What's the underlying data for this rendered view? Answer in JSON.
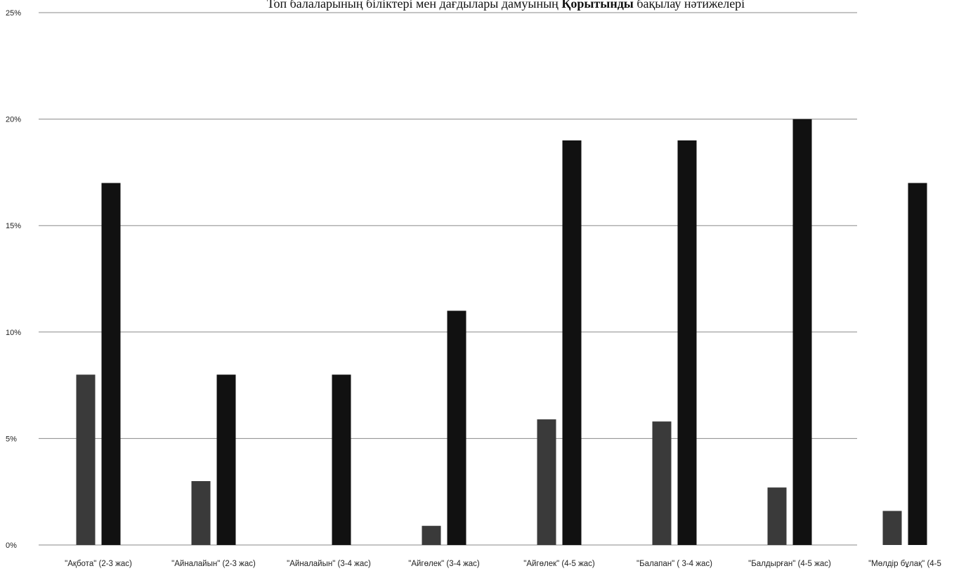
{
  "chart_data": {
    "type": "bar",
    "title_parts": [
      "Топ балаларының біліктері мен дағдылары дамуының ",
      "Қорытынды",
      " бақылау нәтижелері"
    ],
    "xlabel": "",
    "ylabel": "",
    "ylim": [
      0,
      25
    ],
    "yticks": [
      "0%",
      "5%",
      "10%",
      "15%",
      "20%",
      "25%"
    ],
    "ytick_values": [
      0,
      5,
      10,
      15,
      20,
      25
    ],
    "grid": true,
    "categories": [
      "\"Ақбота\" (2-3 жас)",
      "\"Айналайын\" (2-3 жас)",
      "\"Айналайын\" (3-4 жас)",
      "\"Айгөлек\" (3-4 жас)",
      "\"Айгөлек\" (4-5 жас)",
      "\"Балапан\" ( 3-4 жас)",
      "\"Балдырған\" (4-5 жас)",
      "\"Мөлдір бұлақ\" (4-5"
    ],
    "series": [
      {
        "values": [
          8.0,
          3.0,
          null,
          0.9,
          5.9,
          5.8,
          2.7,
          1.6
        ]
      },
      {
        "values": [
          17.0,
          8.0,
          8.0,
          11.0,
          19.0,
          19.0,
          20.0,
          17.0
        ]
      }
    ],
    "colors": {
      "bar_dark": "#111111",
      "bar_mid": "#3a3a3a",
      "grid": "#8a8a8a",
      "text": "#222222"
    }
  }
}
